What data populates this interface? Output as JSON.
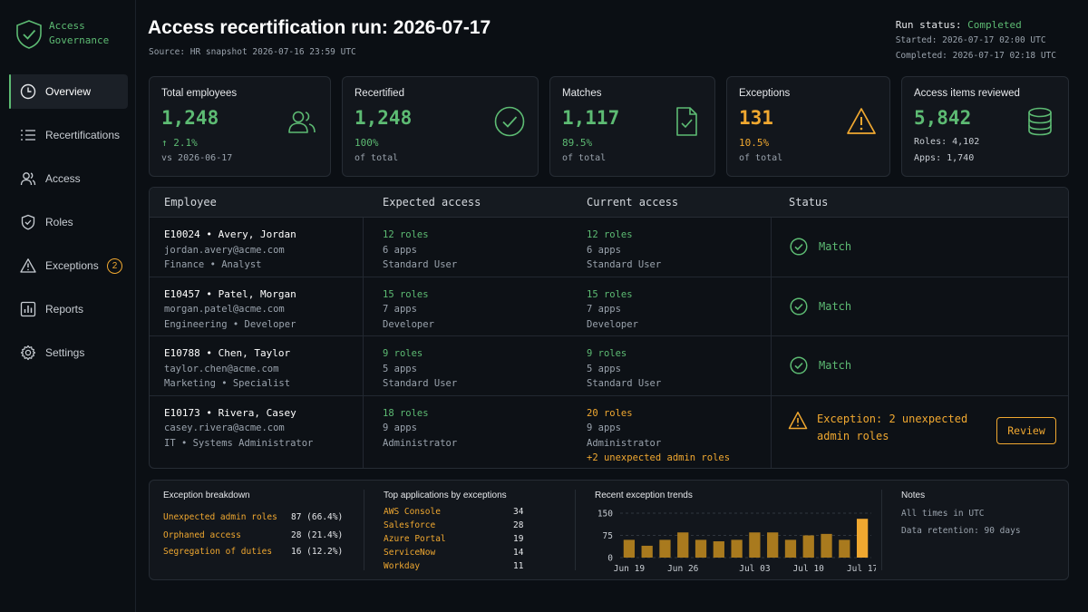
{
  "sidebar": {
    "logo_line1": "Access",
    "logo_line2": "Governance",
    "items": [
      {
        "label": "Overview",
        "icon": "clock-icon",
        "active": true
      },
      {
        "label": "Recertifications",
        "icon": "list-icon"
      },
      {
        "label": "Access",
        "icon": "users-icon"
      },
      {
        "label": "Roles",
        "icon": "shield-icon"
      },
      {
        "label": "Exceptions",
        "icon": "warning-icon",
        "badge": "2"
      },
      {
        "label": "Reports",
        "icon": "bar-chart-icon"
      },
      {
        "label": "Settings",
        "icon": "gear-icon"
      }
    ]
  },
  "header": {
    "title": "Access recertification run: 2026-07-17",
    "source": "Source: HR snapshot 2026-07-16 23:59 UTC",
    "run_status_label": "Run status:",
    "run_status_value": "Completed",
    "started": "Started: 2026-07-17 02:00 UTC",
    "completed": "Completed: 2026-07-17 02:18 UTC"
  },
  "kpis": [
    {
      "label": "Total employees",
      "value": "1,248",
      "sub1": "↑ 2.1%",
      "sub2": "vs 2026-06-17",
      "icon": "users-icon"
    },
    {
      "label": "Recertified",
      "value": "1,248",
      "sub1": "100%",
      "sub2": "of total",
      "icon": "check-circle-icon"
    },
    {
      "label": "Matches",
      "value": "1,117",
      "sub1": "89.5%",
      "sub2": "of total",
      "icon": "document-check-icon"
    },
    {
      "label": "Exceptions",
      "value": "131",
      "sub1": "10.5%",
      "sub2": "of total",
      "icon": "warning-icon"
    },
    {
      "label": "Access items reviewed",
      "value": "5,842",
      "sub1": "Roles: 4,102",
      "sub2": "Apps: 1,740",
      "icon": "database-icon"
    }
  ],
  "table": {
    "headers": [
      "Employee",
      "Expected access",
      "Current access",
      "Status"
    ],
    "rows": [
      {
        "id": "E10024",
        "name": "Avery, Jordan",
        "email": "jordan.avery@acme.com",
        "dept": "Finance • Analyst",
        "exp_roles": "12 roles",
        "exp_apps": "6 apps",
        "exp_profile": "Standard User",
        "cur_roles": "12 roles",
        "cur_apps": "6 apps",
        "cur_profile": "Standard User",
        "status": "Match"
      },
      {
        "id": "E10457",
        "name": "Patel, Morgan",
        "email": "morgan.patel@acme.com",
        "dept": "Engineering • Developer",
        "exp_roles": "15 roles",
        "exp_apps": "7 apps",
        "exp_profile": "Developer",
        "cur_roles": "15 roles",
        "cur_apps": "7 apps",
        "cur_profile": "Developer",
        "status": "Match"
      },
      {
        "id": "E10788",
        "name": "Chen, Taylor",
        "email": "taylor.chen@acme.com",
        "dept": "Marketing • Specialist",
        "exp_roles": "9 roles",
        "exp_apps": "5 apps",
        "exp_profile": "Standard User",
        "cur_roles": "9 roles",
        "cur_apps": "5 apps",
        "cur_profile": "Standard User",
        "status": "Match"
      },
      {
        "id": "E10173",
        "name": "Rivera, Casey",
        "email": "casey.rivera@acme.com",
        "dept": "IT • Systems Administrator",
        "exp_roles": "18 roles",
        "exp_apps": "9 apps",
        "exp_profile": "Administrator",
        "cur_roles": "20 roles",
        "cur_apps": "9 apps",
        "cur_profile": "Administrator",
        "cur_extra": "+2 unexpected admin roles",
        "status_line1": "Exception: 2 unexpected",
        "status_line2": "admin roles",
        "action": "Review"
      }
    ]
  },
  "breakdown": {
    "title": "Exception breakdown",
    "items": [
      {
        "label": "Unexpected admin roles",
        "value": "87 (66.4%)"
      },
      {
        "label": "Orphaned access",
        "value": "28 (21.4%)"
      },
      {
        "label": "Segregation of duties",
        "value": "16 (12.2%)"
      }
    ]
  },
  "top_apps": {
    "title": "Top applications by exceptions",
    "items": [
      {
        "label": "AWS Console",
        "value": "34"
      },
      {
        "label": "Salesforce",
        "value": "28"
      },
      {
        "label": "Azure Portal",
        "value": "19"
      },
      {
        "label": "ServiceNow",
        "value": "14"
      },
      {
        "label": "Workday",
        "value": "11"
      }
    ]
  },
  "trends": {
    "title": "Recent exception trends"
  },
  "chart_data": {
    "type": "bar",
    "title": "Recent exception trends",
    "x_tick_labels": [
      "Jun 19",
      "Jun 26",
      "Jul 03",
      "Jul 10",
      "Jul 17"
    ],
    "values": [
      60,
      40,
      60,
      85,
      60,
      55,
      60,
      85,
      85,
      60,
      75,
      80,
      60,
      131
    ],
    "ylim": [
      0,
      150
    ],
    "y_ticks": [
      "150",
      "75",
      "0"
    ],
    "colors": {
      "bar": "#a97a1e",
      "highlight": "#f0a830"
    }
  },
  "notes": {
    "title": "Notes",
    "line1": "All times in UTC",
    "line2": "Data retention: 90 days"
  }
}
